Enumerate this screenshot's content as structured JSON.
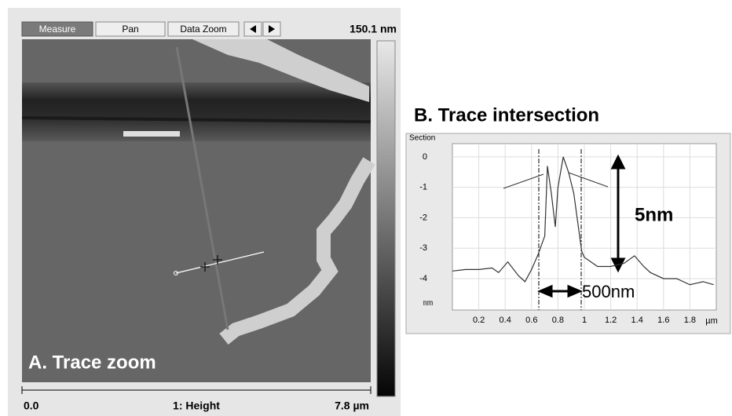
{
  "toolbar": {
    "buttons": [
      "Measure",
      "Pan",
      "Data Zoom"
    ],
    "range_max": "150.1 nm"
  },
  "image": {
    "caption": "A. Trace zoom"
  },
  "footer": {
    "left": "0.0",
    "center": "1: Height",
    "right": "7.8 µm"
  },
  "section": {
    "title": "B. Trace intersection",
    "panel_label": "Section",
    "chart_data": {
      "type": "line",
      "x": [
        0,
        0.1,
        0.2,
        0.3,
        0.35,
        0.42,
        0.5,
        0.55,
        0.6,
        0.65,
        0.7,
        0.72,
        0.75,
        0.78,
        0.8,
        0.84,
        0.88,
        0.92,
        0.98,
        1.0,
        1.1,
        1.2,
        1.3,
        1.38,
        1.45,
        1.5,
        1.6,
        1.7,
        1.8,
        1.9,
        1.98
      ],
      "values": [
        -3.75,
        -3.7,
        -3.7,
        -3.65,
        -3.8,
        -3.45,
        -3.9,
        -4.1,
        -3.7,
        -3.2,
        -2.6,
        -0.3,
        -1.2,
        -2.3,
        -1.0,
        0.0,
        -0.5,
        -1.2,
        -3.1,
        -3.3,
        -3.6,
        -3.6,
        -3.5,
        -3.25,
        -3.6,
        -3.8,
        -4.0,
        -4.0,
        -4.2,
        -4.1,
        -4.2
      ],
      "color": "#333333",
      "xlim": [
        0,
        2
      ],
      "ylim": [
        -4.8,
        0.1
      ],
      "xticks": [
        0.2,
        0.4,
        0.6,
        0.8,
        1,
        1.2,
        1.4,
        1.6,
        1.8
      ],
      "yticks": [
        0,
        -1,
        -2,
        -3,
        -4
      ],
      "x_unit": "µm",
      "y_unit": "nm",
      "grid": true,
      "annotations": [
        "5nm",
        "500nm"
      ]
    }
  }
}
